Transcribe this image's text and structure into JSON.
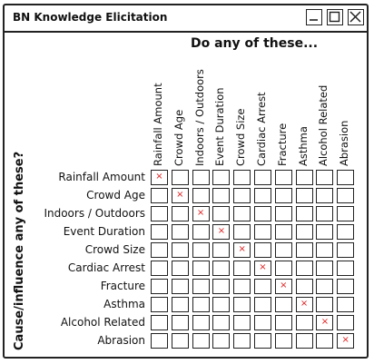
{
  "window": {
    "title": "BN Knowledge Elicitation"
  },
  "heading": "Do any of these...",
  "side_heading": "Cause/influence any of these?",
  "columns": [
    "Rainfall Amount",
    "Crowd Age",
    "Indoors / Outdoors",
    "Event Duration",
    "Crowd Size",
    "Cardiac Arrest",
    "Fracture",
    "Asthma",
    "Alcohol Related",
    "Abrasion"
  ],
  "rows": [
    "Rainfall Amount",
    "Crowd Age",
    "Indoors / Outdoors",
    "Event Duration",
    "Crowd Size",
    "Cardiac Arrest",
    "Fracture",
    "Asthma",
    "Alcohol Related",
    "Abrasion"
  ],
  "checked": [
    [
      0,
      0
    ],
    [
      1,
      1
    ],
    [
      2,
      2
    ],
    [
      3,
      3
    ],
    [
      4,
      4
    ],
    [
      5,
      5
    ],
    [
      6,
      6
    ],
    [
      7,
      7
    ],
    [
      8,
      8
    ],
    [
      9,
      9
    ]
  ],
  "check_mark": "×",
  "colors": {
    "check": "#e02020",
    "border": "#222222"
  }
}
